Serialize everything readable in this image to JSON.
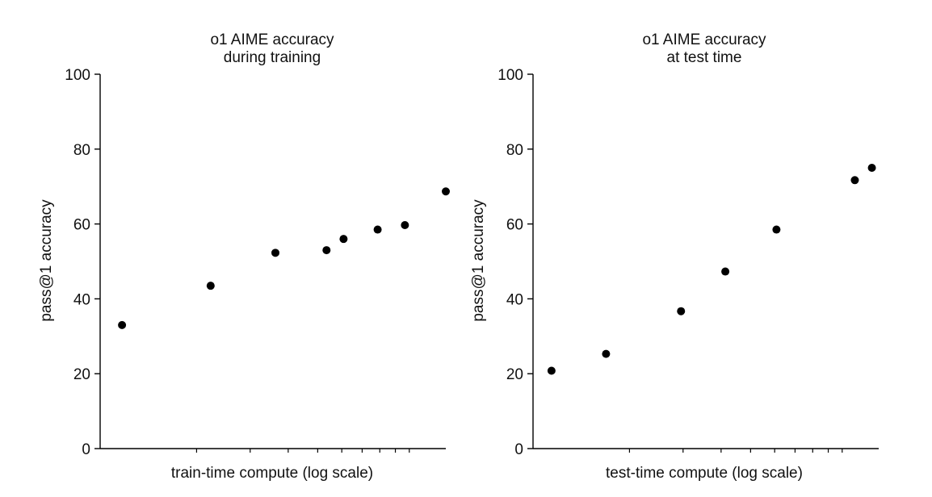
{
  "chart_data": [
    {
      "type": "scatter",
      "title": [
        "o1 AIME accuracy",
        "during training"
      ],
      "xlabel": "train-time compute (log scale)",
      "ylabel": "pass@1 accuracy",
      "ylim": [
        0,
        100
      ],
      "yticks": [
        0,
        20,
        40,
        60,
        80,
        100
      ],
      "x_scale": "log",
      "x_decades": 1.12,
      "x": [
        0.05,
        0.31,
        0.5,
        0.65,
        0.7,
        0.8,
        0.88,
        1.0
      ],
      "y": [
        33,
        43.5,
        52.3,
        53,
        56,
        58.5,
        59.7,
        68.7
      ],
      "color": "#000000"
    },
    {
      "type": "scatter",
      "title": [
        "o1 AIME accuracy",
        "at test time"
      ],
      "xlabel": "test-time compute (log scale)",
      "ylabel": "pass@1 accuracy",
      "ylim": [
        0,
        100
      ],
      "yticks": [
        0,
        20,
        40,
        60,
        80,
        100
      ],
      "x_scale": "log",
      "x_decades": 1.12,
      "x": [
        0.04,
        0.2,
        0.42,
        0.55,
        0.7,
        0.93,
        0.98
      ],
      "y": [
        20.8,
        25.3,
        36.7,
        47.3,
        58.5,
        71.7,
        75
      ],
      "color": "#000000"
    }
  ]
}
